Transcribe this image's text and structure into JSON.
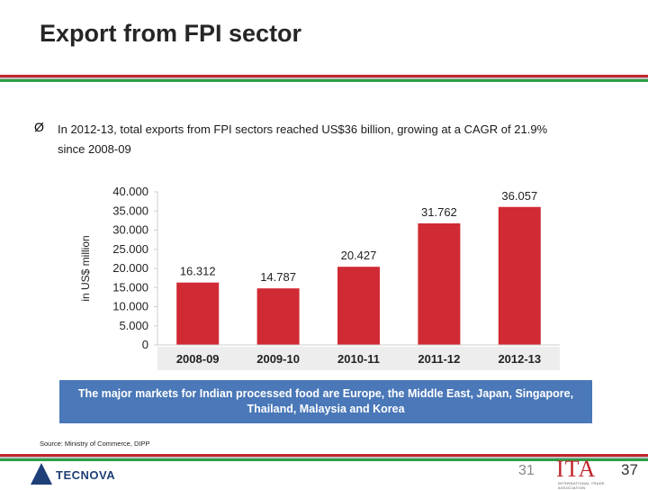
{
  "slide": {
    "title": "Export from FPI sector",
    "bullet_marker": "Ø",
    "bullet_line1": "In 2012-13, total exports from FPI sectors reached US$36 billion, growing at a CAGR of 21.9%",
    "bullet_line2": "since 2008-09",
    "banner": "The major markets for Indian processed food are Europe, the Middle East, Japan, Singapore, Thailand, Malaysia and Korea",
    "source": "Source: Ministry of Commerce, DIPP",
    "page_left": "31",
    "page_right": "37",
    "logo_left": "TECNOVA",
    "logo_right": "ITA",
    "logo_right_sub": "INTERNATIONAL TRADE ASSOCIATION"
  },
  "colors": {
    "bar": "#d02a34",
    "banner": "#4a78b8",
    "accent_red": "#c0272d",
    "accent_green": "#2e9e47"
  },
  "chart_data": {
    "type": "bar",
    "categories": [
      "2008-09",
      "2009-10",
      "2010-11",
      "2011-12",
      "2012-13"
    ],
    "values": [
      16312,
      14787,
      20427,
      31762,
      36057
    ],
    "data_labels": [
      "16.312",
      "14.787",
      "20.427",
      "31.762",
      "36.057"
    ],
    "ylabel": "in US$ million",
    "ylim": [
      0,
      40000
    ],
    "yticks": [
      0,
      5000,
      10000,
      15000,
      20000,
      25000,
      30000,
      35000,
      40000
    ],
    "ytick_labels": [
      "0",
      "5.000",
      "10.000",
      "15.000",
      "20.000",
      "25.000",
      "30.000",
      "35.000",
      "40.000"
    ],
    "grid": false,
    "legend": "none"
  }
}
